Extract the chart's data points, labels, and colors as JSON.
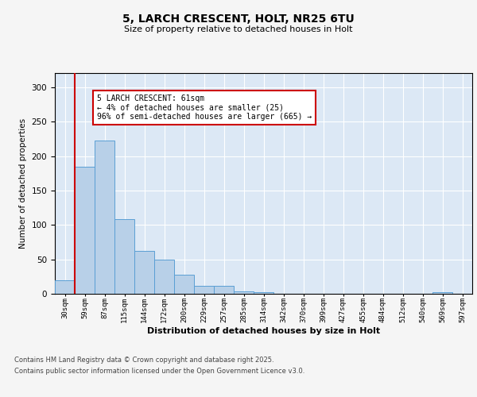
{
  "title_line1": "5, LARCH CRESCENT, HOLT, NR25 6TU",
  "title_line2": "Size of property relative to detached houses in Holt",
  "xlabel": "Distribution of detached houses by size in Holt",
  "ylabel": "Number of detached properties",
  "bar_color": "#b8d0e8",
  "bar_edge_color": "#5a9fd4",
  "categories": [
    "30sqm",
    "59sqm",
    "87sqm",
    "115sqm",
    "144sqm",
    "172sqm",
    "200sqm",
    "229sqm",
    "257sqm",
    "285sqm",
    "314sqm",
    "342sqm",
    "370sqm",
    "399sqm",
    "427sqm",
    "455sqm",
    "484sqm",
    "512sqm",
    "540sqm",
    "569sqm",
    "597sqm"
  ],
  "values": [
    20,
    185,
    222,
    108,
    62,
    50,
    28,
    12,
    12,
    3,
    2,
    0,
    0,
    0,
    0,
    0,
    0,
    0,
    0,
    2,
    0
  ],
  "red_line_index": 1,
  "annotation_text": "5 LARCH CRESCENT: 61sqm\n← 4% of detached houses are smaller (25)\n96% of semi-detached houses are larger (665) →",
  "annotation_box_color": "#ffffff",
  "annotation_box_edge": "#cc0000",
  "red_line_color": "#cc0000",
  "ylim": [
    0,
    320
  ],
  "yticks": [
    0,
    50,
    100,
    150,
    200,
    250,
    300
  ],
  "background_color": "#dce8f5",
  "fig_background": "#f5f5f5",
  "footer_line1": "Contains HM Land Registry data © Crown copyright and database right 2025.",
  "footer_line2": "Contains public sector information licensed under the Open Government Licence v3.0."
}
